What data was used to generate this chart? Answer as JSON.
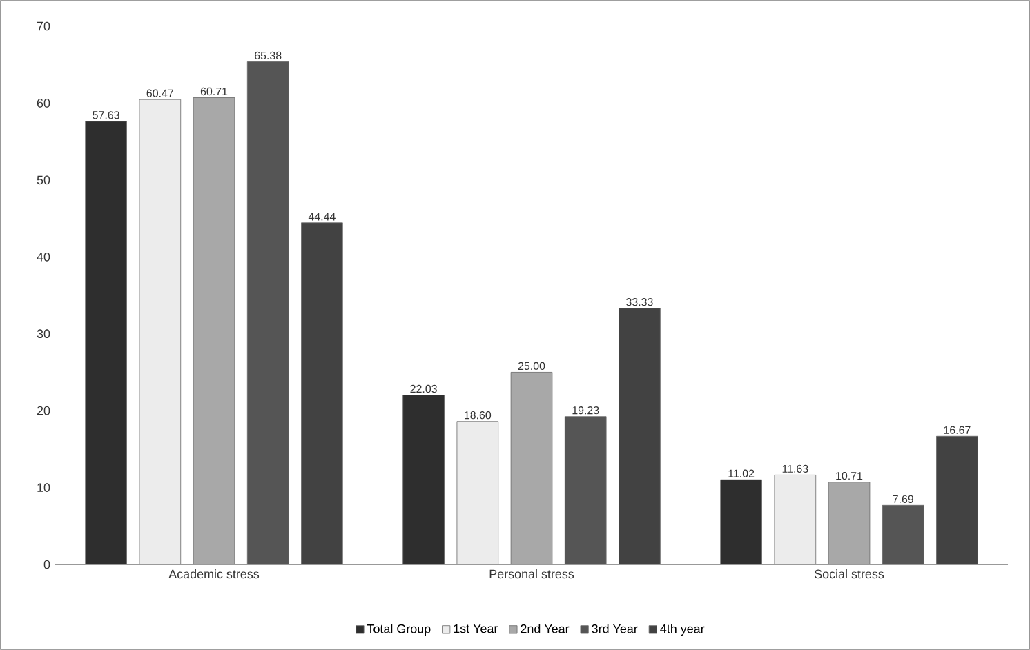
{
  "chart_data": {
    "type": "bar",
    "categories": [
      "Academic stress",
      "Personal stress",
      "Social stress"
    ],
    "series": [
      {
        "name": "Total Group",
        "color": "#2e2e2e",
        "values": [
          57.63,
          22.03,
          11.02
        ],
        "value_labels": [
          "57.63",
          "22.03",
          "11.02"
        ]
      },
      {
        "name": "1st Year",
        "color": "#ececec",
        "values": [
          60.47,
          18.6,
          11.63
        ],
        "value_labels": [
          "60.47",
          "18.60",
          "11.63"
        ]
      },
      {
        "name": "2nd Year",
        "color": "#a8a8a8",
        "values": [
          60.71,
          25,
          10.71
        ],
        "value_labels": [
          "60.71",
          "25.00",
          "10.71"
        ]
      },
      {
        "name": "3rd Year",
        "color": "#555555",
        "values": [
          65.38,
          19.23,
          7.69
        ],
        "value_labels": [
          "65.38",
          "19.23",
          "7.69"
        ]
      },
      {
        "name": "4th year",
        "color": "#424242",
        "values": [
          44.44,
          33.33,
          16.67
        ],
        "value_labels": [
          "44.44",
          "33.33",
          "16.67"
        ]
      }
    ],
    "ylim": [
      0,
      70
    ],
    "yticks": [
      0,
      10,
      20,
      30,
      40,
      50,
      60,
      70
    ],
    "grid": false,
    "legend": "bottom"
  }
}
